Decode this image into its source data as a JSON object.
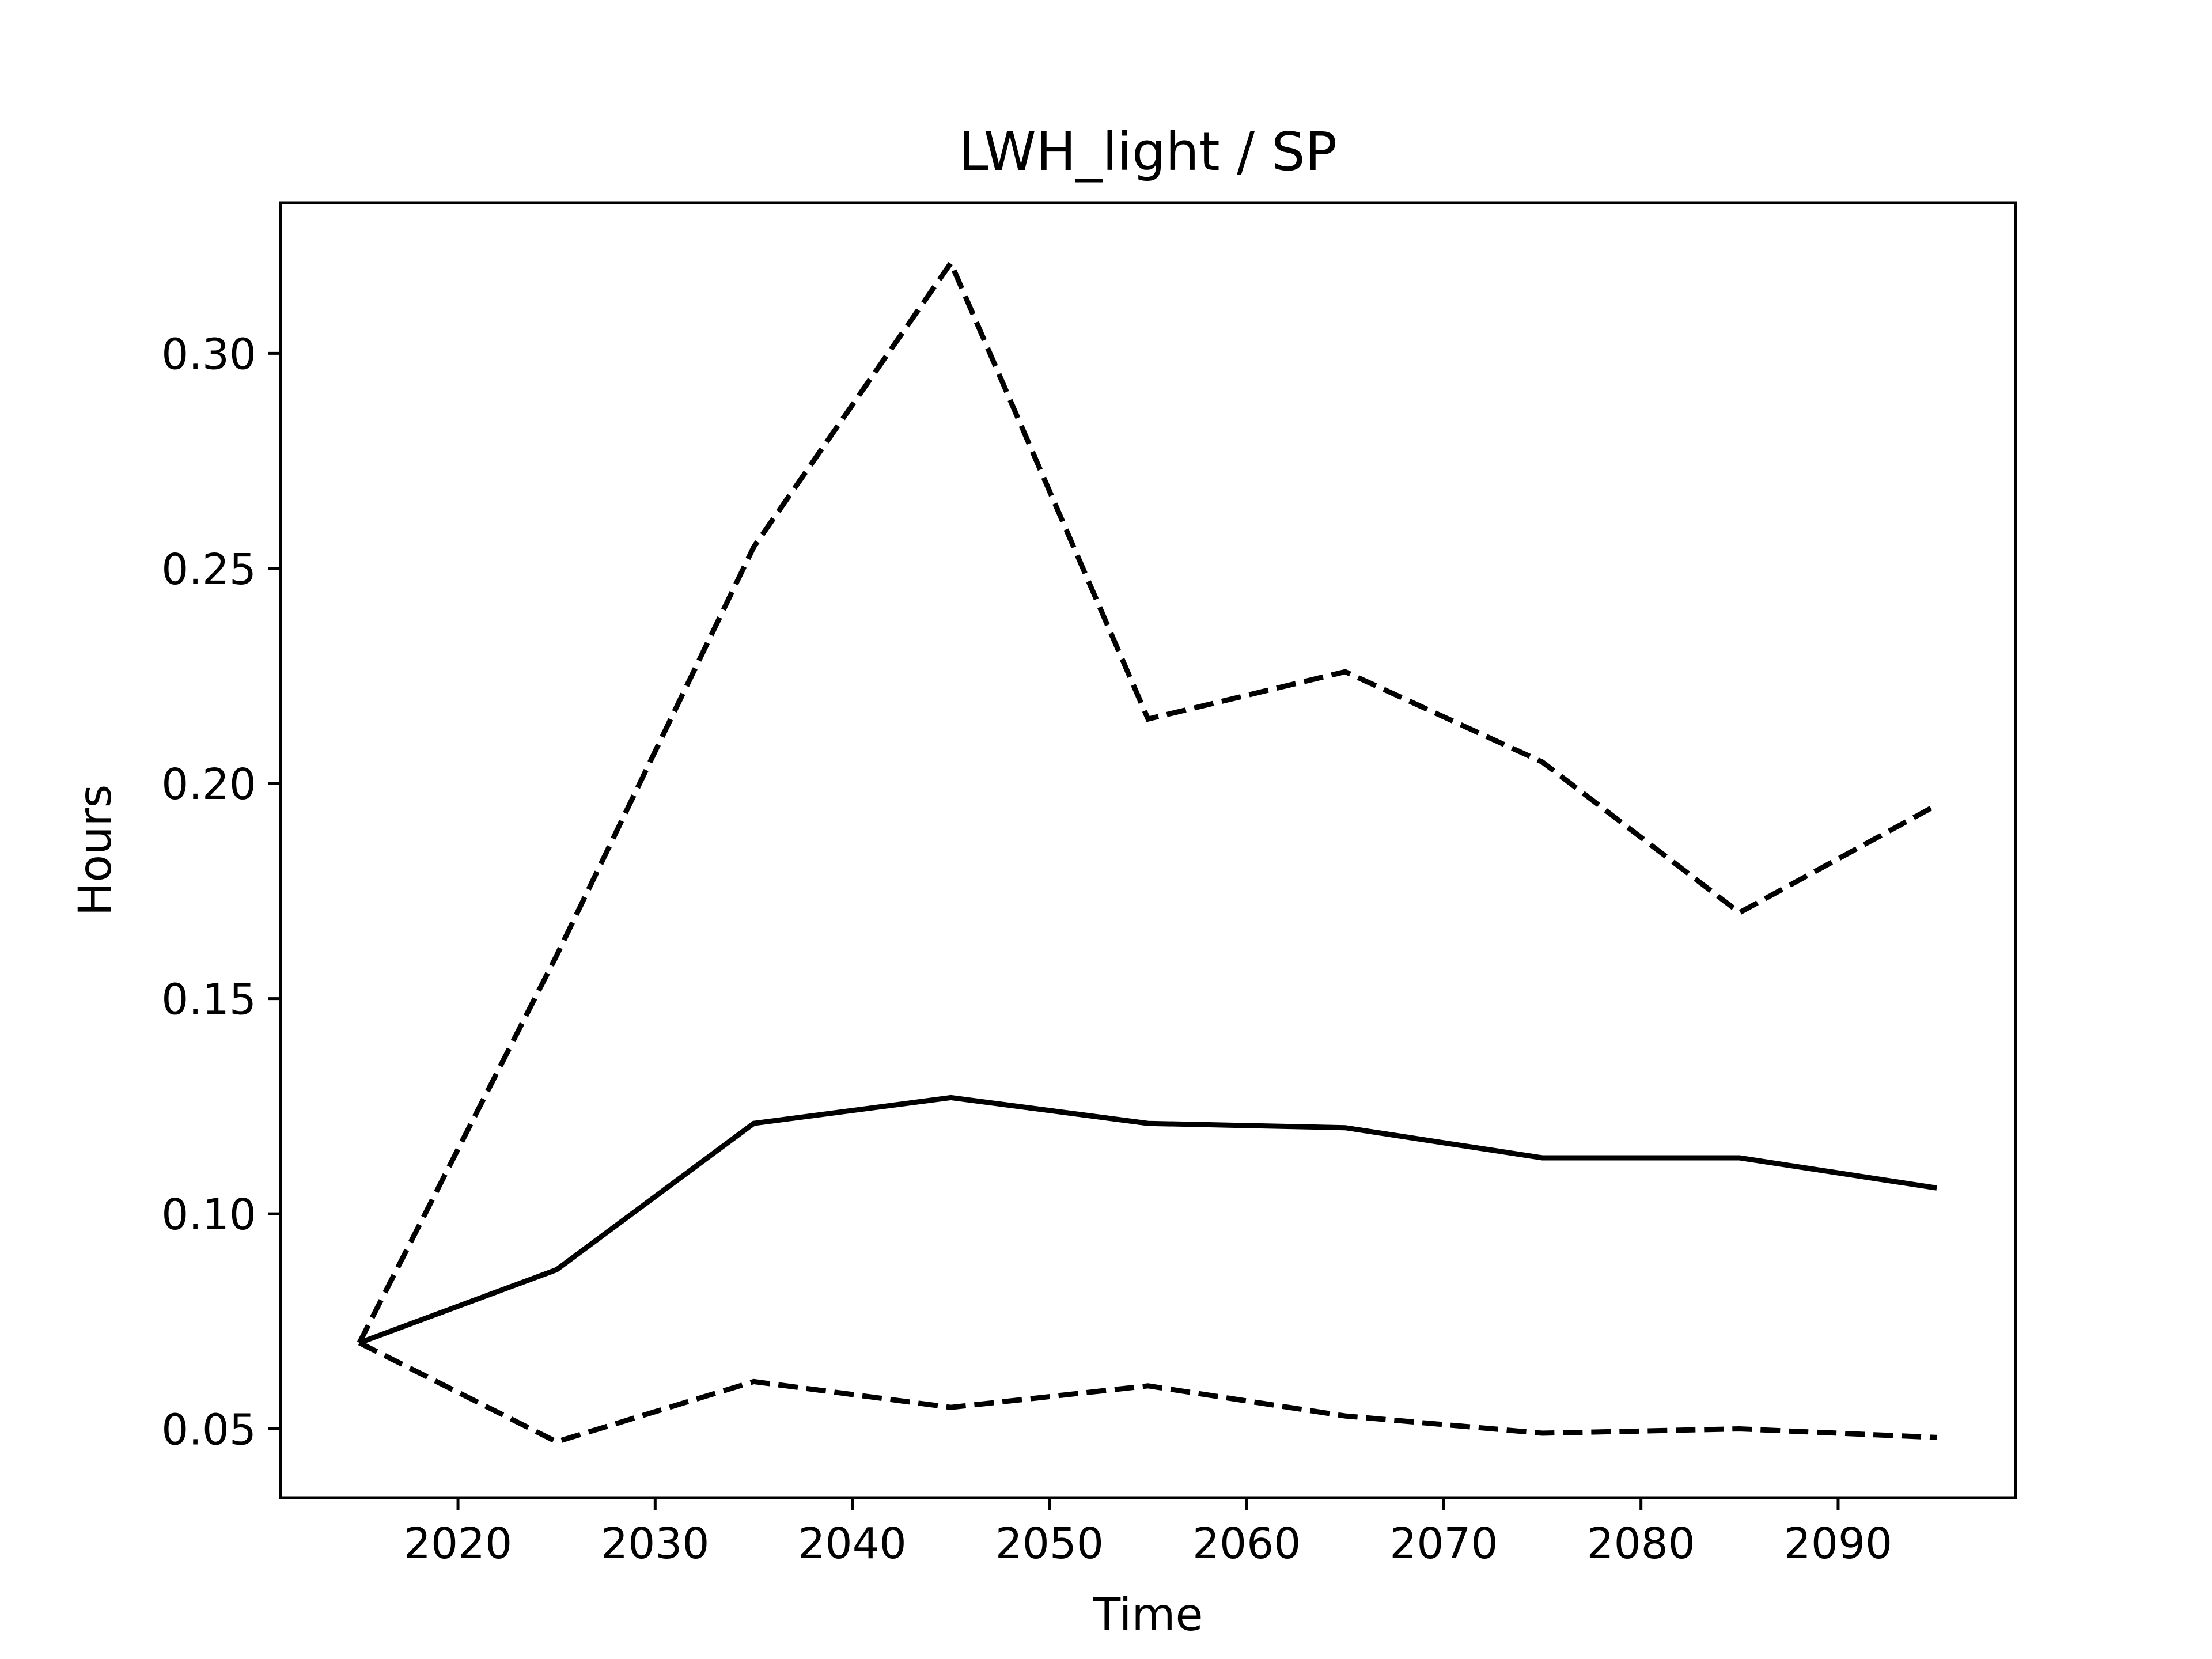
{
  "chart_data": {
    "type": "line",
    "title": "LWH_light / SP",
    "xlabel": "Time",
    "ylabel": "Hours",
    "xlim": [
      2011,
      2099
    ],
    "ylim": [
      0.034,
      0.335
    ],
    "xticks": [
      2020,
      2030,
      2040,
      2050,
      2060,
      2070,
      2080,
      2090
    ],
    "xtick_labels": [
      "2020",
      "2030",
      "2040",
      "2050",
      "2060",
      "2070",
      "2080",
      "2090"
    ],
    "yticks": [
      0.05,
      0.1,
      0.15,
      0.2,
      0.25,
      0.3
    ],
    "ytick_labels": [
      "0.05",
      "0.10",
      "0.15",
      "0.20",
      "0.25",
      "0.30"
    ],
    "grid": false,
    "x": [
      2015,
      2025,
      2035,
      2045,
      2055,
      2065,
      2075,
      2085,
      2095
    ],
    "series": [
      {
        "style": "solid",
        "color": "#000000",
        "values": [
          0.07,
          0.087,
          0.121,
          0.127,
          0.121,
          0.12,
          0.113,
          0.113,
          0.106
        ]
      },
      {
        "style": "dashed",
        "color": "#000000",
        "values": [
          0.07,
          0.16,
          0.255,
          0.321,
          0.215,
          0.226,
          0.205,
          0.17,
          0.195
        ]
      },
      {
        "style": "dashed",
        "color": "#000000",
        "values": [
          0.07,
          0.047,
          0.061,
          0.055,
          0.06,
          0.053,
          0.049,
          0.05,
          0.048
        ]
      }
    ]
  }
}
